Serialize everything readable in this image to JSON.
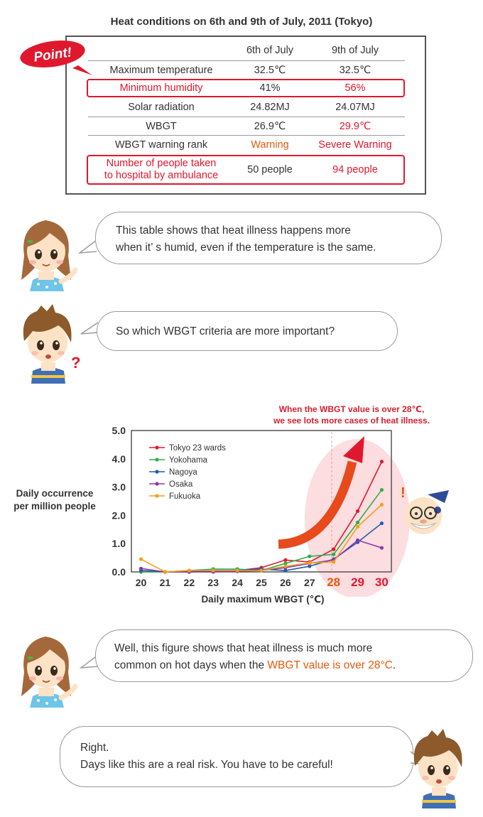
{
  "table": {
    "title": "Heat conditions on 6th and 9th of July, 2011 (Tokyo)",
    "badge": "Point!",
    "headers": [
      "",
      "6th of July",
      "9th of July"
    ],
    "rows": [
      {
        "label": "Maximum temperature",
        "v6": "32.5℃",
        "v9": "32.5℃"
      },
      {
        "label": "Minimum humidity",
        "v6": "41%",
        "v9": "56%"
      },
      {
        "label": "Solar radiation",
        "v6": "24.82MJ",
        "v9": "24.07MJ"
      },
      {
        "label": "WBGT",
        "v6": "26.9℃",
        "v9": "29.9℃"
      },
      {
        "label": "WBGT warning rank",
        "v6": "Warning",
        "v9": "Severe Warning"
      },
      {
        "label_line1": "Number of people taken",
        "label_line2": "to hospital by ambulance",
        "v6": "50 people",
        "v9": "94 people"
      }
    ]
  },
  "dialog": {
    "bubble1": {
      "line1": "This table shows that heat illness happens more",
      "line2": "when it’ s humid, even if the temperature is the same."
    },
    "bubble2": {
      "line1": "So which WBGT criteria are more important?"
    },
    "bubble3": {
      "line1": "Well, this figure shows that heat illness is much more",
      "line2_plain": "common on hot days when the ",
      "line2_highlight": "WBGT value is over 28°C",
      "line2_end": "."
    },
    "bubble4": {
      "line1": "Right.",
      "line2": "Days like this are a real risk. You have to be careful!"
    }
  },
  "chart_data": {
    "type": "line",
    "annotation_line1": "When the WBGT value is over 28℃,",
    "annotation_line2": "we see lots more cases of heat illness.",
    "ylabel_line1": "Daily occurrence",
    "ylabel_line2": "per million people",
    "xlabel": "Daily maximum WBGT (℃)",
    "x": [
      20,
      21,
      22,
      23,
      24,
      25,
      26,
      27,
      28,
      29,
      30
    ],
    "xticks": [
      "20",
      "21",
      "22",
      "23",
      "24",
      "25",
      "26",
      "27",
      "28",
      "29",
      "30"
    ],
    "yticks": [
      "0.0",
      "1.0",
      "2.0",
      "3.0",
      "4.0",
      "5.0"
    ],
    "xlim": [
      19.6,
      30.4
    ],
    "ylim": [
      0,
      5
    ],
    "highlight_from_x": 28,
    "legend_position": "top-left",
    "series": [
      {
        "name": "Tokyo 23 wards",
        "color": "#e0182e",
        "values": [
          0.05,
          0.0,
          0.02,
          0.05,
          0.05,
          0.15,
          0.42,
          0.35,
          0.8,
          2.15,
          3.9
        ]
      },
      {
        "name": "Yokohama",
        "color": "#2fae4a",
        "values": [
          0.0,
          0.0,
          0.05,
          0.1,
          0.1,
          0.05,
          0.3,
          0.55,
          0.62,
          1.75,
          2.9
        ]
      },
      {
        "name": "Nagoya",
        "color": "#1f5fa8",
        "values": [
          0.05,
          0.0,
          0.0,
          0.02,
          0.05,
          0.1,
          0.05,
          0.2,
          0.45,
          1.05,
          1.72
        ]
      },
      {
        "name": "Osaka",
        "color": "#8a3aa8",
        "values": [
          0.12,
          0.0,
          0.0,
          0.0,
          0.02,
          0.05,
          0.15,
          0.3,
          0.42,
          1.12,
          0.85
        ]
      },
      {
        "name": "Fukuoka",
        "color": "#f4a01c",
        "values": [
          0.45,
          0.0,
          0.05,
          0.05,
          0.05,
          0.05,
          0.2,
          0.32,
          0.35,
          1.6,
          2.38
        ]
      }
    ]
  }
}
